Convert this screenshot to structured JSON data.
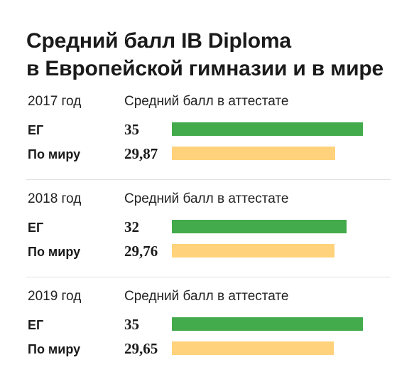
{
  "title": {
    "line1": "Средний балл IB Diploma",
    "line2": "в Европейской гимназии и в мире"
  },
  "colors": {
    "eg": "#43ab4b",
    "world": "#ffd27b"
  },
  "chart_data": {
    "type": "bar",
    "orientation": "horizontal",
    "metric_label": "Средний балл в аттестате",
    "groups": [
      {
        "year_label": "2017 год",
        "metric_label": "Средний балл в аттестате",
        "rows": [
          {
            "label": "ЕГ",
            "value": 35,
            "value_label": "35",
            "series": "eg"
          },
          {
            "label": "По миру",
            "value": 29.87,
            "value_label": "29,87",
            "series": "world"
          }
        ]
      },
      {
        "year_label": "2018 год",
        "metric_label": "Средний балл в аттестате",
        "rows": [
          {
            "label": "ЕГ",
            "value": 32,
            "value_label": "32",
            "series": "eg"
          },
          {
            "label": "По миру",
            "value": 29.76,
            "value_label": "29,76",
            "series": "world"
          }
        ]
      },
      {
        "year_label": "2019 год",
        "metric_label": "Средний балл в аттестате",
        "rows": [
          {
            "label": "ЕГ",
            "value": 35,
            "value_label": "35",
            "series": "eg"
          },
          {
            "label": "По миру",
            "value": 29.65,
            "value_label": "29,65",
            "series": "world"
          }
        ]
      }
    ]
  }
}
